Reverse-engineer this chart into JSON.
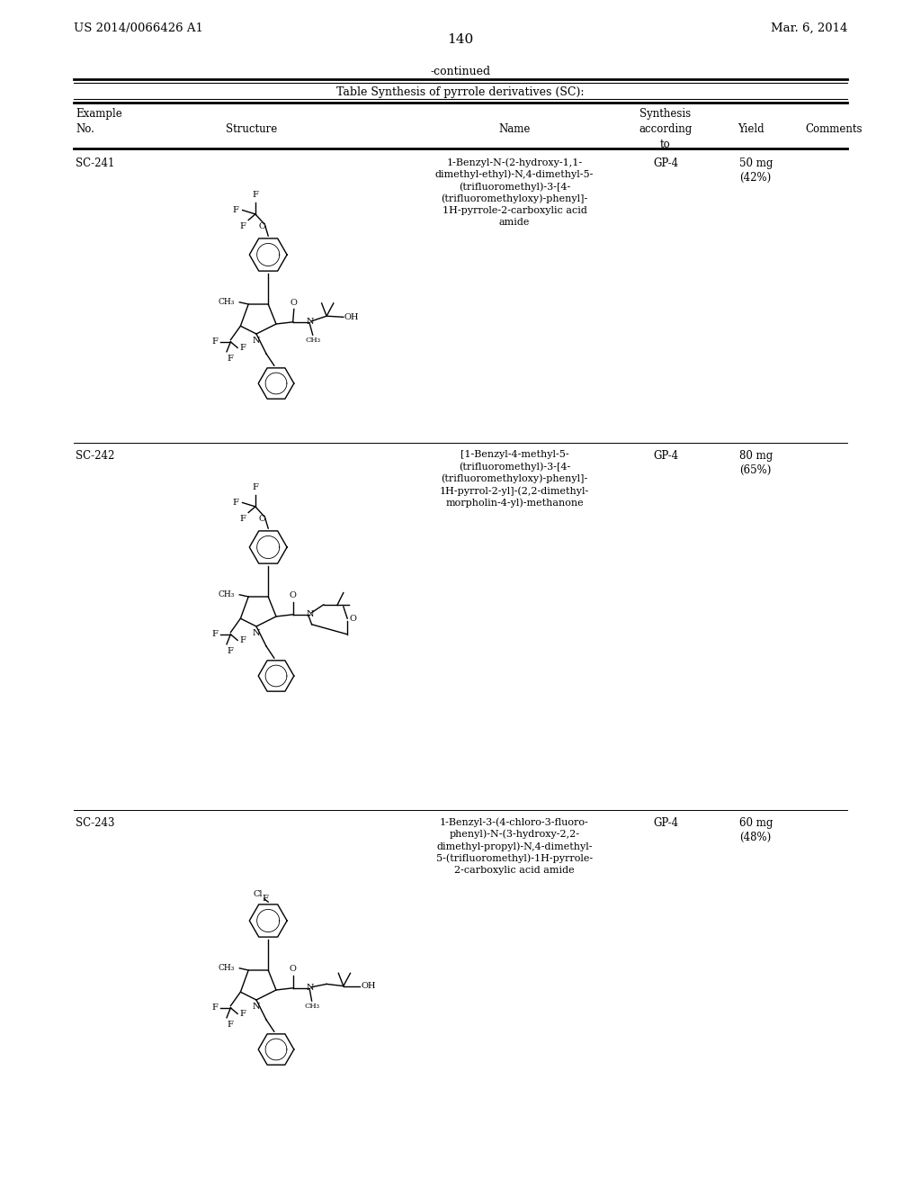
{
  "background_color": "#ffffff",
  "page_number": "140",
  "patent_left": "US 2014/0066426 A1",
  "patent_right": "Mar. 6, 2014",
  "continued_text": "-continued",
  "table_title": "Table Synthesis of pyrrole derivatives (SC):",
  "rows": [
    {
      "example_no": "SC-241",
      "name": "1-Benzyl-N-(2-hydroxy-1,1-\ndimethyl-ethyl)-N,4-dimethyl-5-\n(trifluoromethyl)-3-[4-\n(trifluoromethyloxy)-phenyl]-\n1H-pyrrole-2-carboxylic acid\namide",
      "synthesis": "GP-4",
      "yield": "50 mg\n(42%)"
    },
    {
      "example_no": "SC-242",
      "name": "[1-Benzyl-4-methyl-5-\n(trifluoromethyl)-3-[4-\n(trifluoromethyloxy)-phenyl]-\n1H-pyrrol-2-yl]-(2,2-dimethyl-\nmorpholin-4-yl)-methanone",
      "synthesis": "GP-4",
      "yield": "80 mg\n(65%)"
    },
    {
      "example_no": "SC-243",
      "name": "1-Benzyl-3-(4-chloro-3-fluoro-\nphenyl)-N-(3-hydroxy-2,2-\ndimethyl-propyl)-N,4-dimethyl-\n5-(trifluoromethyl)-1H-pyrrole-\n2-carboxylic acid amide",
      "synthesis": "GP-4",
      "yield": "60 mg\n(48%)"
    }
  ]
}
